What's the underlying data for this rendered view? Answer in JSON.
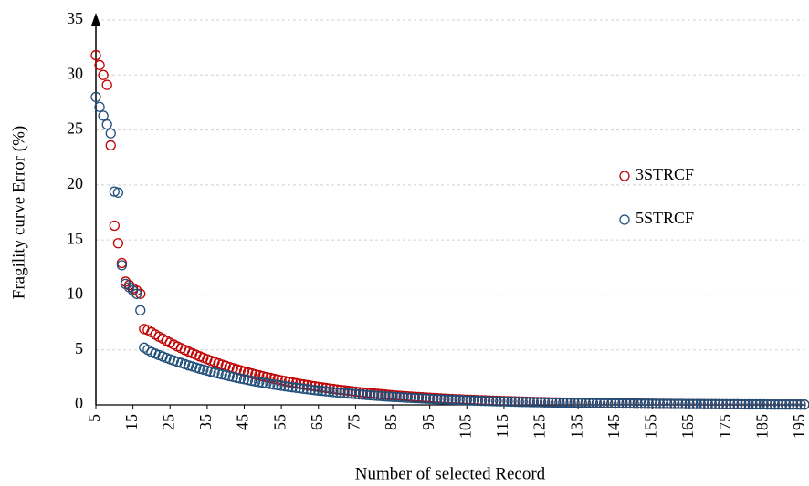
{
  "chart_data": {
    "type": "scatter",
    "x_label": "Number of selected Record",
    "y_label": "Fragility curve Error (%)",
    "x": [
      5,
      6,
      7,
      8,
      9,
      10,
      11,
      12,
      13,
      14,
      15,
      16,
      17,
      18,
      19,
      20,
      21,
      22,
      23,
      24,
      25,
      26,
      27,
      28,
      29,
      30,
      31,
      32,
      33,
      34,
      35,
      36,
      37,
      38,
      39,
      40,
      41,
      42,
      43,
      44,
      45,
      46,
      47,
      48,
      49,
      50,
      51,
      52,
      53,
      54,
      55,
      56,
      57,
      58,
      59,
      60,
      61,
      62,
      63,
      64,
      65,
      66,
      67,
      68,
      69,
      70,
      71,
      72,
      73,
      74,
      75,
      76,
      77,
      78,
      79,
      80,
      81,
      82,
      83,
      84,
      85,
      86,
      87,
      88,
      89,
      90,
      91,
      92,
      93,
      94,
      95,
      96,
      97,
      98,
      99,
      100,
      101,
      102,
      103,
      104,
      105,
      106,
      107,
      108,
      109,
      110,
      111,
      112,
      113,
      114,
      115,
      116,
      117,
      118,
      119,
      120,
      121,
      122,
      123,
      124,
      125,
      126,
      127,
      128,
      129,
      130,
      131,
      132,
      133,
      134,
      135,
      136,
      137,
      138,
      139,
      140,
      141,
      142,
      143,
      144,
      145,
      146,
      147,
      148,
      149,
      150,
      151,
      152,
      153,
      154,
      155,
      156,
      157,
      158,
      159,
      160,
      161,
      162,
      163,
      164,
      165,
      166,
      167,
      168,
      169,
      170,
      171,
      172,
      173,
      174,
      175,
      176,
      177,
      178,
      179,
      180,
      181,
      182,
      183,
      184,
      185,
      186,
      187,
      188,
      189,
      190,
      191,
      192,
      193,
      194,
      195,
      196
    ],
    "series": [
      {
        "name": "3STRCF",
        "color": "#c00000",
        "values": [
          31.8,
          30.9,
          30.0,
          29.1,
          23.6,
          16.3,
          14.7,
          12.9,
          11.2,
          10.9,
          10.6,
          10.4,
          10.1,
          6.9,
          6.8,
          6.6,
          6.4,
          6.2,
          6.02,
          5.83,
          5.65,
          5.48,
          5.31,
          5.15,
          4.99,
          4.84,
          4.69,
          4.55,
          4.41,
          4.28,
          4.15,
          4.02,
          3.9,
          3.78,
          3.66,
          3.55,
          3.44,
          3.34,
          3.24,
          3.14,
          3.04,
          2.95,
          2.86,
          2.77,
          2.69,
          2.6,
          2.52,
          2.45,
          2.37,
          2.3,
          2.23,
          2.16,
          2.1,
          2.03,
          1.97,
          1.91,
          1.85,
          1.8,
          1.74,
          1.69,
          1.64,
          1.59,
          1.54,
          1.49,
          1.45,
          1.4,
          1.36,
          1.32,
          1.28,
          1.24,
          1.2,
          1.16,
          1.13,
          1.09,
          1.06,
          1.03,
          1.0,
          0.97,
          0.94,
          0.91,
          0.88,
          0.85,
          0.83,
          0.8,
          0.78,
          0.75,
          0.73,
          0.71,
          0.69,
          0.67,
          0.65,
          0.63,
          0.61,
          0.59,
          0.57,
          0.55,
          0.54,
          0.52,
          0.51,
          0.49,
          0.48,
          0.46,
          0.45,
          0.43,
          0.42,
          0.41,
          0.4,
          0.38,
          0.37,
          0.36,
          0.35,
          0.34,
          0.33,
          0.32,
          0.31,
          0.3,
          0.29,
          0.28,
          0.27,
          0.26,
          0.26,
          0.25,
          0.24,
          0.23,
          0.23,
          0.22,
          0.21,
          0.21,
          0.2,
          0.19,
          0.19,
          0.18,
          0.18,
          0.17,
          0.17,
          0.16,
          0.16,
          0.15,
          0.15,
          0.14,
          0.14,
          0.13,
          0.13,
          0.13,
          0.12,
          0.12,
          0.11,
          0.11,
          0.11,
          0.1,
          0.1,
          0.1,
          0.09,
          0.09,
          0.09,
          0.09,
          0.08,
          0.08,
          0.08,
          0.07,
          0.07,
          0.07,
          0.07,
          0.07,
          0.06,
          0.06,
          0.06,
          0.06,
          0.05,
          0.05,
          0.05,
          0.05,
          0.05,
          0.05,
          0.04,
          0.04,
          0.04,
          0.04,
          0.04,
          0.04,
          0.04,
          0.03,
          0.03,
          0.03,
          0.03,
          0.03,
          0.03,
          0.03,
          0.03,
          0.03,
          0.02,
          0.02
        ]
      },
      {
        "name": "5STRCF",
        "color": "#1f4e79",
        "values": [
          28.0,
          27.1,
          26.3,
          25.5,
          24.7,
          19.4,
          19.3,
          12.7,
          11.0,
          10.7,
          10.4,
          10.1,
          8.6,
          5.2,
          5.0,
          4.8,
          4.66,
          4.53,
          4.4,
          4.27,
          4.15,
          4.03,
          3.92,
          3.81,
          3.7,
          3.59,
          3.49,
          3.39,
          3.29,
          3.2,
          3.11,
          3.02,
          2.93,
          2.85,
          2.77,
          2.69,
          2.61,
          2.54,
          2.46,
          2.39,
          2.33,
          2.26,
          2.19,
          2.13,
          2.07,
          2.01,
          1.95,
          1.9,
          1.84,
          1.79,
          1.74,
          1.69,
          1.64,
          1.6,
          1.55,
          1.51,
          1.46,
          1.42,
          1.38,
          1.34,
          1.3,
          1.27,
          1.23,
          1.2,
          1.16,
          1.13,
          1.1,
          1.07,
          1.03,
          1.01,
          0.98,
          0.95,
          0.92,
          0.89,
          0.87,
          0.84,
          0.82,
          0.8,
          0.77,
          0.75,
          0.73,
          0.71,
          0.69,
          0.67,
          0.65,
          0.63,
          0.61,
          0.6,
          0.58,
          0.56,
          0.55,
          0.53,
          0.52,
          0.5,
          0.49,
          0.47,
          0.46,
          0.45,
          0.43,
          0.42,
          0.41,
          0.4,
          0.39,
          0.37,
          0.36,
          0.35,
          0.34,
          0.33,
          0.32,
          0.31,
          0.31,
          0.3,
          0.29,
          0.28,
          0.27,
          0.26,
          0.26,
          0.25,
          0.24,
          0.24,
          0.23,
          0.22,
          0.22,
          0.21,
          0.2,
          0.2,
          0.19,
          0.19,
          0.18,
          0.18,
          0.17,
          0.17,
          0.16,
          0.16,
          0.15,
          0.15,
          0.15,
          0.14,
          0.14,
          0.13,
          0.13,
          0.13,
          0.12,
          0.12,
          0.12,
          0.11,
          0.11,
          0.11,
          0.1,
          0.1,
          0.1,
          0.09,
          0.09,
          0.09,
          0.09,
          0.08,
          0.08,
          0.08,
          0.08,
          0.07,
          0.07,
          0.07,
          0.07,
          0.07,
          0.06,
          0.06,
          0.06,
          0.06,
          0.06,
          0.05,
          0.05,
          0.05,
          0.05,
          0.05,
          0.05,
          0.04,
          0.04,
          0.04,
          0.04,
          0.04,
          0.04,
          0.04,
          0.03,
          0.03,
          0.03,
          0.03,
          0.03,
          0.03,
          0.03,
          0.03,
          0.03,
          0.03
        ]
      }
    ],
    "xlim": [
      5,
      196
    ],
    "xticks": [
      5,
      15,
      25,
      35,
      45,
      55,
      65,
      75,
      85,
      95,
      105,
      115,
      125,
      135,
      145,
      155,
      165,
      175,
      185,
      195
    ],
    "ylim": [
      0,
      35
    ],
    "yticks": [
      0,
      5,
      10,
      15,
      20,
      25,
      30,
      35
    ],
    "grid": true,
    "legend_position": "right"
  }
}
